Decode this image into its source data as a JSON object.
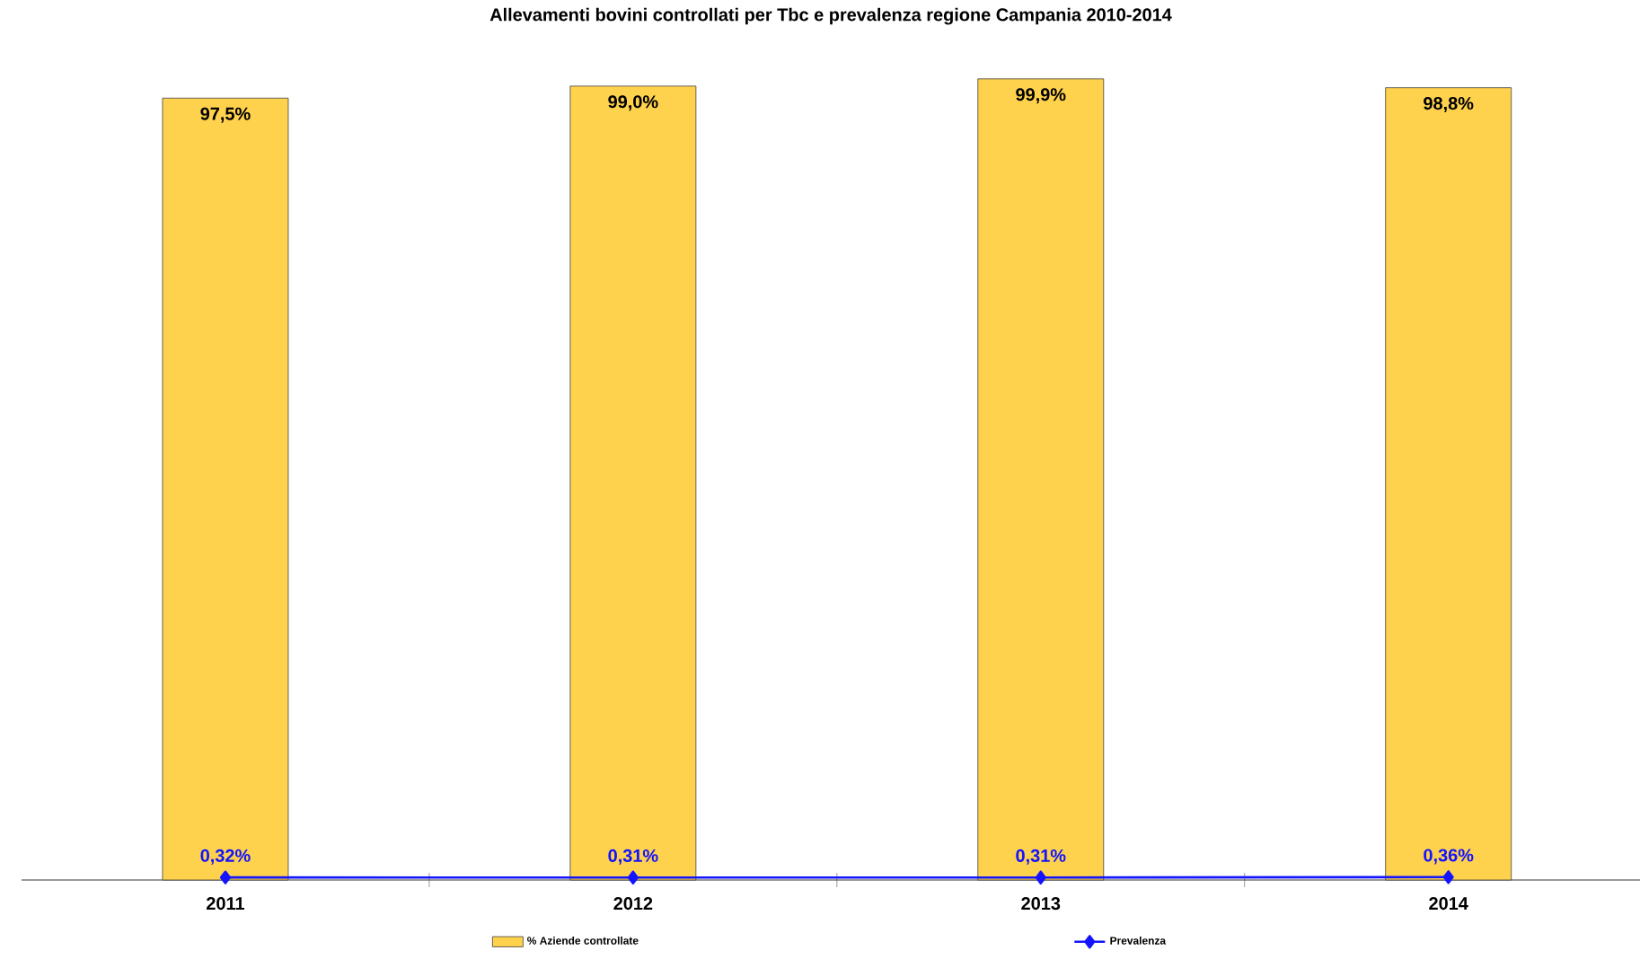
{
  "chart_data": {
    "type": "bar",
    "title": "Allevamenti bovini controllati per Tbc e prevalenza regione Campania 2010-2014",
    "categories": [
      "2011",
      "2012",
      "2013",
      "2014"
    ],
    "series": [
      {
        "name": "% Aziende controllate",
        "color": "#ffd24d",
        "values": [
          97.5,
          99.0,
          99.9,
          98.8
        ],
        "value_labels": [
          "97,5%",
          "99,0%",
          "99,9%",
          "98,8%"
        ]
      },
      {
        "name": "Prevalenza",
        "type": "line",
        "color": "#1414ff",
        "marker": "diamond",
        "values": [
          0.32,
          0.31,
          0.31,
          0.36
        ],
        "value_labels": [
          "0,32%",
          "0,31%",
          "0,31%",
          "0,36%"
        ]
      }
    ],
    "legend": "bottom"
  }
}
